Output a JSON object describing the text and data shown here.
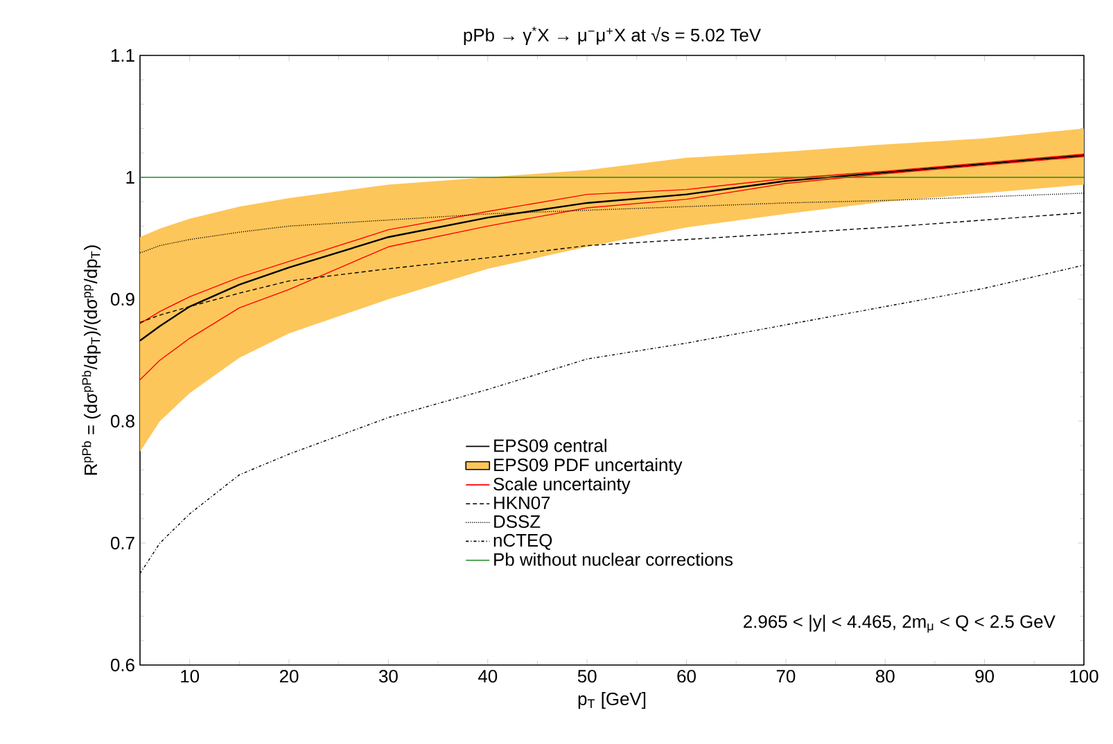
{
  "chart_data": {
    "type": "line",
    "title": "pPb → γ$^{*}$X → μ$^{−}$μ$^{+}$X at √s = 5.02 TeV",
    "xlabel": "p$_{T}$ [GeV]",
    "ylabel": "R$^{pPb}$ = (dσ$^{pPb}$/dp$_{T}$)/(dσ$^{pp}$/dp$_{T}$)",
    "x": [
      5,
      7,
      10,
      15,
      20,
      30,
      40,
      50,
      60,
      70,
      80,
      90,
      100
    ],
    "xlim": [
      5,
      100
    ],
    "xticks": [
      10,
      20,
      30,
      40,
      50,
      60,
      70,
      80,
      90,
      100
    ],
    "ylim": [
      0.6,
      1.1
    ],
    "yticks": [
      0.6,
      0.7,
      0.8,
      0.9,
      1,
      1.1
    ],
    "legend": "bottom",
    "marker": "none",
    "series": [
      {
        "name": "EPS09 central",
        "color": "#000000",
        "line_style": "solid",
        "values": [
          0.866,
          0.878,
          0.894,
          0.912,
          0.926,
          0.951,
          0.967,
          0.979,
          0.986,
          0.997,
          1.004,
          1.011,
          1.018
        ]
      },
      {
        "name": "EPS09 PDF uncertainty",
        "color": "#fdc65a",
        "values": [
          null,
          null,
          null,
          null,
          null,
          null,
          null,
          null,
          null,
          null,
          null,
          null,
          null
        ],
        "lower": [
          0.775,
          0.8,
          0.823,
          0.852,
          0.872,
          0.9,
          0.925,
          0.943,
          0.959,
          0.97,
          0.98,
          0.987,
          0.994
        ],
        "upper": [
          0.951,
          0.958,
          0.966,
          0.976,
          0.983,
          0.994,
          1.0,
          1.006,
          1.016,
          1.021,
          1.027,
          1.032,
          1.04
        ]
      },
      {
        "name": "Scale uncertainty",
        "color": "#ff0000",
        "line_style": "solid",
        "values": [
          0.88,
          0.89,
          0.902,
          0.918,
          0.931,
          0.957,
          0.972,
          0.986,
          0.99,
          0.999,
          1.005,
          1.012,
          1.019
        ]
      },
      {
        "color": "#ff0000",
        "line_style": "solid",
        "values": [
          0.834,
          0.85,
          0.868,
          0.893,
          0.908,
          0.943,
          0.96,
          0.975,
          0.982,
          0.995,
          1.003,
          1.01,
          1.017
        ]
      },
      {
        "name": "HKN07",
        "color": "#000000",
        "line_style": "dashed",
        "values": [
          0.881,
          0.887,
          0.894,
          0.905,
          0.915,
          0.925,
          0.934,
          0.944,
          0.949,
          0.954,
          0.959,
          0.965,
          0.971
        ]
      },
      {
        "name": "DSSZ",
        "color": "#000000",
        "line_style": "dotted",
        "values": [
          0.938,
          0.944,
          0.949,
          0.955,
          0.96,
          0.965,
          0.97,
          0.973,
          0.976,
          0.979,
          0.981,
          0.984,
          0.987
        ]
      },
      {
        "name": "nCTEQ",
        "color": "#000000",
        "line_style": "dashdotted",
        "values": [
          0.675,
          0.7,
          0.724,
          0.756,
          0.773,
          0.803,
          0.826,
          0.851,
          0.864,
          0.879,
          0.894,
          0.909,
          0.928
        ]
      },
      {
        "name": "Pb without nuclear corrections",
        "color": "#228b22",
        "line_style": "solid",
        "values": [
          1,
          1,
          1,
          1,
          1,
          1,
          1,
          1,
          1,
          1,
          1,
          1,
          1
        ]
      }
    ],
    "annotations": [
      "2.965 < |y| < 4.465,   2m$_{μ}$ < Q < 2.5 GeV"
    ]
  }
}
